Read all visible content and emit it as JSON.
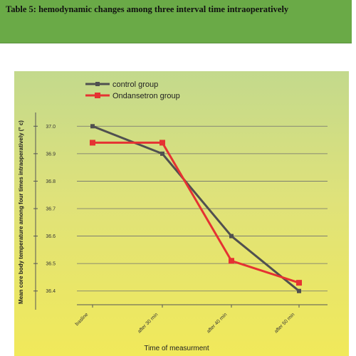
{
  "header": {
    "title": "Table 5: hemodynamic changes among three interval time intraoperatively"
  },
  "colors": {
    "banner": "#6aaa47",
    "control": "#505050",
    "ondansetron": "#e53232"
  },
  "chart_data": {
    "type": "line",
    "xlabel": "Time of measurment",
    "ylabel": "Mean core body temperature among four times intraoperatively (° c)",
    "categories": [
      "basline",
      "after 30 min",
      "after 40 min",
      "after 50 min"
    ],
    "y_ticks": [
      "36.4",
      "36.5",
      "36.6",
      "36.7",
      "36.8",
      "36.9",
      "37.0"
    ],
    "ylim": [
      36.35,
      37.05
    ],
    "grid": "horizontal",
    "legend_position": "top-left",
    "series": [
      {
        "name": "control group",
        "values": [
          37.0,
          36.9,
          36.6,
          36.4
        ]
      },
      {
        "name": "Ondansetron group",
        "values": [
          36.94,
          36.94,
          36.51,
          36.43
        ]
      }
    ]
  }
}
